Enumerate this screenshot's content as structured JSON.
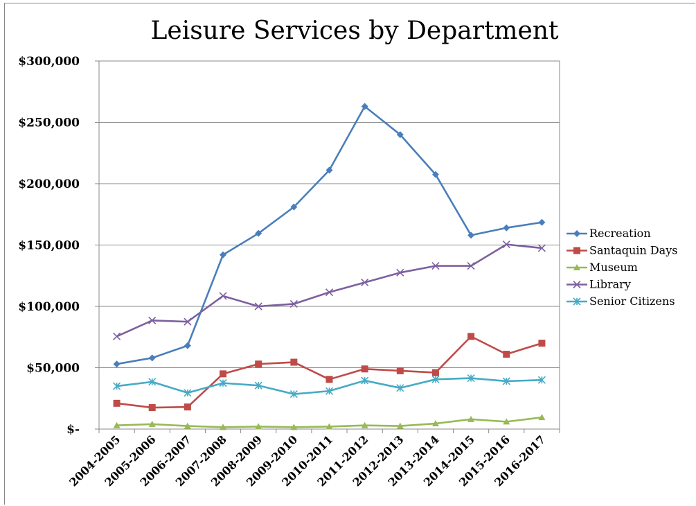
{
  "chart_data": {
    "type": "line",
    "title": "Leisure Services by Department",
    "xlabel": "",
    "ylabel": "",
    "ylim": [
      0,
      300000
    ],
    "yticks": [
      0,
      50000,
      100000,
      150000,
      200000,
      250000,
      300000
    ],
    "ytick_labels": [
      "$-",
      "$50,000",
      "$100,000",
      "$150,000",
      "$200,000",
      "$250,000",
      "$300,000"
    ],
    "grid": true,
    "legend_position": "right",
    "categories": [
      "2004-2005",
      "2005-2006",
      "2006-2007",
      "2007-2008",
      "2008-2009",
      "2009-2010",
      "2010-2011",
      "2011-2012",
      "2012-2013",
      "2013-2014",
      "2014-2015",
      "2015-2016",
      "2016-2017"
    ],
    "series": [
      {
        "name": "Recreation",
        "color": "#4a7ebb",
        "marker": "diamond",
        "values": [
          53000,
          58000,
          68000,
          142000,
          159500,
          181000,
          211000,
          263000,
          240000,
          207500,
          158000,
          164000,
          168500
        ]
      },
      {
        "name": "Santaquin Days",
        "color": "#be4b48",
        "marker": "square",
        "values": [
          21000,
          17500,
          18000,
          45000,
          53000,
          54500,
          40500,
          49000,
          47500,
          46000,
          75500,
          61000,
          70000
        ]
      },
      {
        "name": "Museum",
        "color": "#98b954",
        "marker": "triangle",
        "values": [
          3000,
          4000,
          2500,
          1500,
          2000,
          1500,
          2000,
          3000,
          2500,
          4500,
          8000,
          6000,
          9500
        ]
      },
      {
        "name": "Library",
        "color": "#7d60a0",
        "marker": "x",
        "values": [
          75500,
          88500,
          87500,
          108500,
          100000,
          102000,
          111500,
          119500,
          127500,
          133000,
          133000,
          150500,
          147500
        ]
      },
      {
        "name": "Senior Citizens",
        "color": "#46aac5",
        "marker": "asterisk",
        "values": [
          35000,
          38500,
          29500,
          37500,
          35500,
          28500,
          31000,
          39500,
          33500,
          40500,
          41500,
          39000,
          40000
        ]
      }
    ]
  }
}
